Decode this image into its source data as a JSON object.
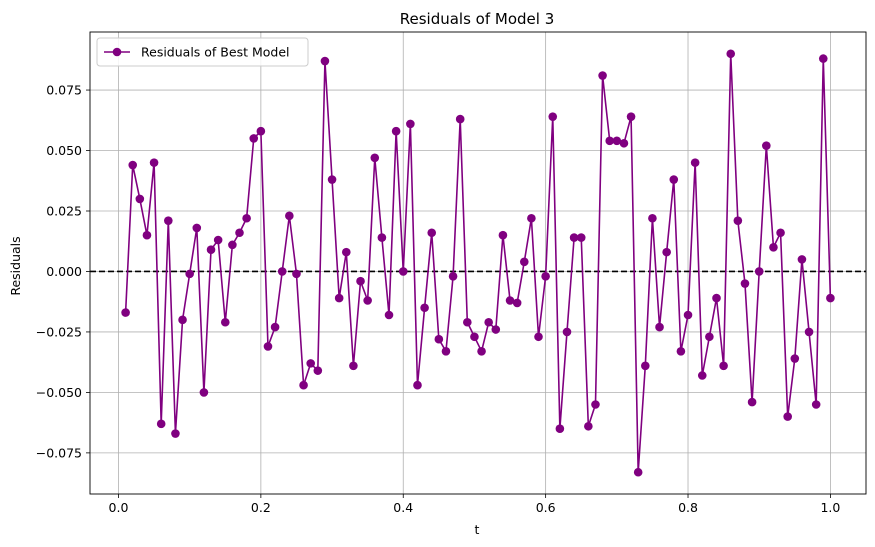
{
  "chart_data": {
    "type": "line",
    "title": "Residuals of Model 3",
    "xlabel": "t",
    "ylabel": "Residuals",
    "xlim": [
      -0.04,
      1.05
    ],
    "ylim": [
      -0.092,
      0.099
    ],
    "xticks": [
      0.0,
      0.2,
      0.4,
      0.6,
      0.8,
      1.0
    ],
    "xtick_labels": [
      "0.0",
      "0.2",
      "0.4",
      "0.6",
      "0.8",
      "1.0"
    ],
    "yticks": [
      -0.075,
      -0.05,
      -0.025,
      0.0,
      0.025,
      0.05,
      0.075
    ],
    "ytick_labels": [
      "−0.075",
      "−0.050",
      "−0.025",
      "0.000",
      "0.025",
      "0.050",
      "0.075"
    ],
    "grid": true,
    "legend_position": "top-left",
    "reference_line": {
      "y": 0.0,
      "style": "dashed",
      "color": "#000000"
    },
    "series": [
      {
        "name": "Residuals of Best Model",
        "color": "#800080",
        "marker": "circle",
        "x": [
          0.01,
          0.02,
          0.03,
          0.04,
          0.05,
          0.06,
          0.07,
          0.08,
          0.09,
          0.1,
          0.11,
          0.12,
          0.13,
          0.14,
          0.15,
          0.16,
          0.17,
          0.18,
          0.19,
          0.2,
          0.21,
          0.22,
          0.23,
          0.24,
          0.25,
          0.26,
          0.27,
          0.28,
          0.29,
          0.3,
          0.31,
          0.32,
          0.33,
          0.34,
          0.35,
          0.36,
          0.37,
          0.38,
          0.39,
          0.4,
          0.41,
          0.42,
          0.43,
          0.44,
          0.45,
          0.46,
          0.47,
          0.48,
          0.49,
          0.5,
          0.51,
          0.52,
          0.53,
          0.54,
          0.55,
          0.56,
          0.57,
          0.58,
          0.59,
          0.6,
          0.61,
          0.62,
          0.63,
          0.64,
          0.65,
          0.66,
          0.67,
          0.68,
          0.69,
          0.7,
          0.71,
          0.72,
          0.73,
          0.74,
          0.75,
          0.76,
          0.77,
          0.78,
          0.79,
          0.8,
          0.81,
          0.82,
          0.83,
          0.84,
          0.85,
          0.86,
          0.87,
          0.88,
          0.89,
          0.9,
          0.91,
          0.92,
          0.93,
          0.94,
          0.95,
          0.96,
          0.97,
          0.98,
          0.99,
          1.0
        ],
        "y": [
          -0.017,
          0.044,
          0.03,
          0.015,
          0.045,
          -0.063,
          0.021,
          -0.067,
          -0.02,
          -0.001,
          0.018,
          -0.05,
          0.009,
          0.013,
          -0.021,
          0.011,
          0.016,
          0.022,
          0.055,
          0.058,
          -0.031,
          -0.023,
          0.0,
          0.023,
          -0.001,
          -0.047,
          -0.038,
          -0.041,
          0.087,
          0.038,
          -0.011,
          0.008,
          -0.039,
          -0.004,
          -0.012,
          0.047,
          0.014,
          -0.018,
          0.058,
          0.0,
          0.061,
          -0.047,
          -0.015,
          0.016,
          -0.028,
          -0.033,
          -0.002,
          0.063,
          -0.021,
          -0.027,
          -0.033,
          -0.021,
          -0.024,
          0.015,
          -0.012,
          -0.013,
          0.004,
          0.022,
          -0.027,
          -0.002,
          0.064,
          -0.065,
          -0.025,
          0.014,
          0.014,
          -0.064,
          -0.055,
          0.081,
          0.054,
          0.054,
          0.053,
          0.064,
          -0.083,
          -0.039,
          0.022,
          -0.023,
          0.008,
          0.038,
          -0.033,
          -0.018,
          0.045,
          -0.043,
          -0.027,
          -0.011,
          -0.039,
          0.09,
          0.021,
          -0.005,
          -0.054,
          0.0,
          0.052,
          0.01,
          0.016,
          -0.06,
          -0.036,
          0.005,
          -0.025,
          -0.055,
          0.088,
          -0.011
        ]
      }
    ]
  }
}
